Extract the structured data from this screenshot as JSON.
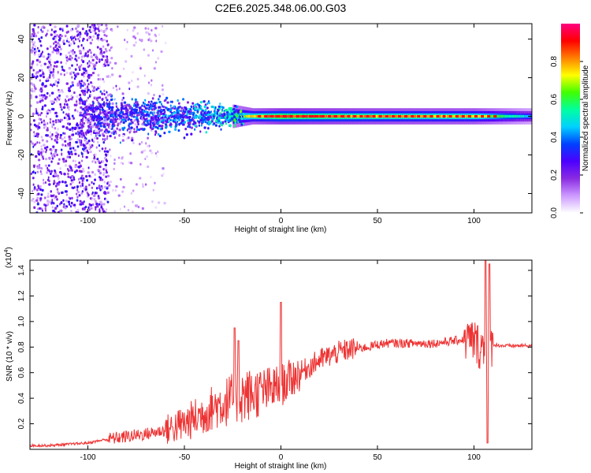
{
  "title": "C2E6.2025.348.06.00.G03",
  "colors": {
    "snr_line": "#ee3333",
    "spectrum_background": "#ffffff",
    "colormap": [
      "#ffffff",
      "#cc99ff",
      "#8a2be2",
      "#4b00ff",
      "#0040ff",
      "#00d0ff",
      "#00ffa0",
      "#40ff00",
      "#ffff00",
      "#ff8000",
      "#ff0000",
      "#ff0080"
    ]
  },
  "chart_data": [
    {
      "type": "heatmap",
      "xlabel": "Height of straight line (km)",
      "ylabel": "Frequency (Hz)",
      "xlim": [
        -130,
        130
      ],
      "ylim": [
        -50,
        48
      ],
      "xticks": [
        -100,
        -50,
        0,
        50,
        100
      ],
      "yticks": [
        -40,
        -20,
        0,
        20,
        40
      ],
      "colorbar": {
        "label": "Normalized spectral amplitude",
        "range": [
          0,
          1
        ],
        "ticks": [
          "0.0",
          "0.2",
          "0.4",
          "0.6",
          "0.8"
        ],
        "tick_values": [
          0,
          0.2,
          0.4,
          0.6,
          0.8
        ]
      },
      "grid": false,
      "description_points": [
        {
          "x": -120,
          "freq_spread_hz": 48,
          "peak_amplitude": 0.25
        },
        {
          "x": -100,
          "freq_spread_hz": 12,
          "peak_amplitude": 0.4
        },
        {
          "x": -75,
          "freq_spread_hz": 8,
          "peak_amplitude": 0.45
        },
        {
          "x": -50,
          "freq_spread_hz": 8,
          "peak_amplitude": 0.5
        },
        {
          "x": -30,
          "freq_spread_hz": 5,
          "peak_amplitude": 0.6
        },
        {
          "x": -15,
          "freq_spread_hz": 3,
          "peak_amplitude": 0.8
        },
        {
          "x": 0,
          "freq_spread_hz": 3,
          "peak_amplitude": 0.95
        },
        {
          "x": 50,
          "freq_spread_hz": 3,
          "peak_amplitude": 0.85
        },
        {
          "x": 100,
          "freq_spread_hz": 3,
          "peak_amplitude": 0.8
        },
        {
          "x": 130,
          "freq_spread_hz": 3,
          "peak_amplitude": 0.45
        }
      ]
    },
    {
      "type": "line",
      "xlabel": "Height of straight line (km)",
      "ylabel": "SNR (10 * v/v)",
      "y_multiplier": "(x10",
      "y_multiplier_exp": "4",
      "xlim": [
        -130,
        130
      ],
      "ylim": [
        0,
        1.48
      ],
      "xticks": [
        -100,
        -50,
        0,
        50,
        100
      ],
      "yticks": [
        0.2,
        0.4,
        0.6,
        0.8,
        1.0,
        1.2,
        1.4
      ],
      "ytick_labels": [
        "0.2",
        "0.4",
        "0.6",
        "0.8",
        "1.0",
        "1.2",
        "1.4"
      ],
      "grid": false,
      "series": [
        {
          "x": [
            -130,
            -120,
            -110,
            -100,
            -90,
            -80,
            -70,
            -60,
            -50,
            -45,
            -40,
            -35,
            -30,
            -25,
            -20,
            -15,
            -10,
            -5,
            0,
            5,
            10,
            15,
            20,
            25,
            30,
            35,
            40,
            45,
            50,
            55,
            60,
            65,
            70,
            75,
            80,
            85,
            90,
            95,
            100,
            103,
            106,
            108,
            110,
            115,
            120,
            125,
            130
          ],
          "values": [
            0.03,
            0.03,
            0.04,
            0.05,
            0.08,
            0.1,
            0.12,
            0.15,
            0.2,
            0.24,
            0.28,
            0.33,
            0.36,
            0.4,
            0.42,
            0.43,
            0.45,
            0.47,
            0.5,
            0.55,
            0.6,
            0.65,
            0.7,
            0.73,
            0.76,
            0.78,
            0.79,
            0.8,
            0.82,
            0.83,
            0.83,
            0.83,
            0.83,
            0.83,
            0.83,
            0.84,
            0.85,
            0.86,
            0.85,
            0.8,
            0.8,
            0.82,
            0.82,
            0.81,
            0.81,
            0.81,
            0.81
          ]
        }
      ],
      "spikes": [
        {
          "x": -24,
          "value": 0.95
        },
        {
          "x": -22,
          "value": 0.85
        },
        {
          "x": 0,
          "value": 1.15
        },
        {
          "x": 106,
          "value": 1.48
        },
        {
          "x": 107,
          "value": 0.05
        },
        {
          "x": 108,
          "value": 1.45
        }
      ]
    }
  ]
}
